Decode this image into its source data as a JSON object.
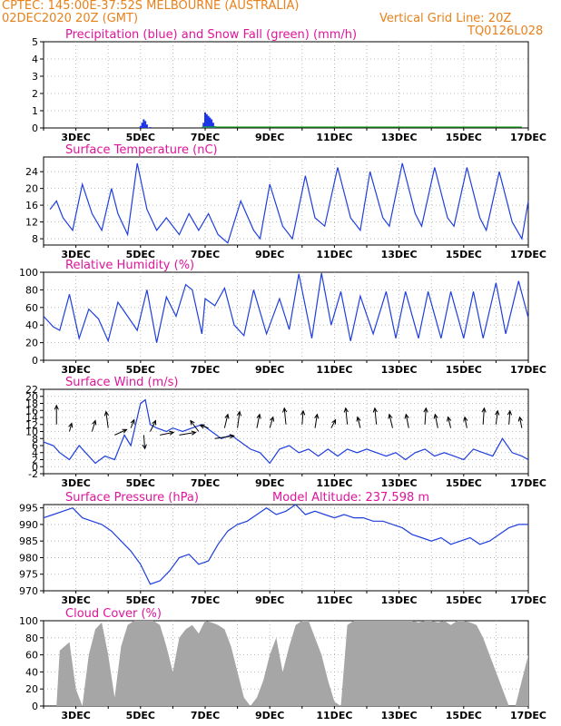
{
  "header": {
    "line1": "CPTEC:    145:00E-37:52S   MELBOURNE (AUSTRALIA)",
    "line2": "02DEC2020 20Z (GMT)",
    "grid_note": "Vertical Grid Line: 20Z",
    "code": "TQ0126L028"
  },
  "colors": {
    "header": "#e8811a",
    "title": "#e0149b",
    "line": "#1f3fdc",
    "precip": "#1a34e6",
    "snow": "#21a821",
    "cloud": "#a6a6a6",
    "arrow": "#000000"
  },
  "x_labels": [
    "3DEC",
    "5DEC",
    "7DEC",
    "9DEC",
    "11DEC",
    "13DEC",
    "15DEC",
    "17DEC"
  ],
  "chart_data": [
    {
      "type": "bar",
      "title": "Precipitation (blue) and Snow Fall (green) (mm/h)",
      "ylim": [
        0,
        5
      ],
      "yticks": [
        0,
        1,
        2,
        3,
        4,
        5
      ],
      "grid": true,
      "series": [
        {
          "name": "Precipitation",
          "values": [
            [
              5.0,
              0.1
            ],
            [
              5.05,
              0.3
            ],
            [
              5.1,
              0.5
            ],
            [
              5.15,
              0.4
            ],
            [
              5.2,
              0.2
            ],
            [
              5.3,
              0.05
            ],
            [
              6.95,
              0.3
            ],
            [
              7.0,
              0.9
            ],
            [
              7.05,
              0.8
            ],
            [
              7.1,
              0.7
            ],
            [
              7.15,
              0.6
            ],
            [
              7.2,
              0.5
            ],
            [
              7.25,
              0.3
            ],
            [
              7.3,
              0.1
            ]
          ]
        },
        {
          "name": "Snow Fall",
          "values": []
        }
      ]
    },
    {
      "type": "line",
      "title": "Surface Temperature (nC)",
      "ylim": [
        6.5,
        27.5
      ],
      "yticks": [
        8,
        12,
        16,
        20,
        24
      ],
      "grid": true,
      "x": [
        2.2,
        2.4,
        2.6,
        2.9,
        3.2,
        3.5,
        3.8,
        4.1,
        4.3,
        4.6,
        4.9,
        5.2,
        5.5,
        5.8,
        6.2,
        6.5,
        6.8,
        7.1,
        7.4,
        7.7,
        8.1,
        8.5,
        8.7,
        9.0,
        9.4,
        9.7,
        10.1,
        10.4,
        10.7,
        11.1,
        11.5,
        11.8,
        12.1,
        12.5,
        12.7,
        13.1,
        13.5,
        13.7,
        14.1,
        14.5,
        14.7,
        15.1,
        15.5,
        15.7,
        16.1,
        16.5,
        16.8,
        17.0
      ],
      "y": [
        15,
        17,
        13,
        10,
        21,
        14,
        10,
        20,
        14,
        9,
        26,
        15,
        10,
        13,
        9,
        14,
        10,
        14,
        9,
        7,
        17,
        10,
        8,
        21,
        11,
        8,
        23,
        13,
        11,
        25,
        13,
        10,
        24,
        13,
        11,
        26,
        14,
        11,
        25,
        13,
        11,
        25,
        13,
        10,
        24,
        12,
        8,
        17
      ]
    },
    {
      "type": "line",
      "title": "Relative Humidity (%)",
      "ylim": [
        0,
        100
      ],
      "yticks": [
        0,
        20,
        40,
        60,
        80,
        100
      ],
      "grid": true,
      "x": [
        2.0,
        2.3,
        2.5,
        2.8,
        3.1,
        3.4,
        3.7,
        4.0,
        4.3,
        4.6,
        4.9,
        5.2,
        5.5,
        5.8,
        6.1,
        6.4,
        6.6,
        6.9,
        7.0,
        7.3,
        7.6,
        7.9,
        8.2,
        8.5,
        8.9,
        9.3,
        9.6,
        9.9,
        10.3,
        10.6,
        10.9,
        11.2,
        11.5,
        11.8,
        12.2,
        12.6,
        12.9,
        13.2,
        13.6,
        13.9,
        14.3,
        14.6,
        15.0,
        15.3,
        15.6,
        16.0,
        16.3,
        16.7,
        17.0
      ],
      "y": [
        50,
        38,
        34,
        75,
        25,
        58,
        47,
        22,
        66,
        50,
        34,
        80,
        20,
        72,
        50,
        86,
        80,
        30,
        70,
        62,
        82,
        40,
        28,
        80,
        30,
        70,
        35,
        98,
        25,
        99,
        40,
        78,
        22,
        73,
        30,
        78,
        25,
        78,
        25,
        78,
        25,
        78,
        25,
        78,
        25,
        88,
        30,
        90,
        48
      ]
    },
    {
      "type": "line",
      "title": "Surface Wind (m/s)",
      "ylim": [
        -2,
        22
      ],
      "yticks": [
        -2,
        0,
        2,
        4,
        6,
        8,
        10,
        12,
        14,
        16,
        18,
        20,
        22
      ],
      "grid": true,
      "x": [
        2.0,
        2.3,
        2.5,
        2.8,
        3.1,
        3.3,
        3.6,
        3.9,
        4.2,
        4.5,
        4.7,
        5.0,
        5.15,
        5.3,
        5.5,
        5.8,
        6.0,
        6.3,
        6.6,
        6.9,
        7.2,
        7.5,
        7.8,
        8.1,
        8.4,
        8.7,
        9.0,
        9.3,
        9.6,
        9.9,
        10.2,
        10.5,
        10.8,
        11.1,
        11.4,
        11.7,
        12.0,
        12.3,
        12.6,
        12.9,
        13.2,
        13.5,
        13.8,
        14.1,
        14.4,
        14.7,
        15.0,
        15.3,
        15.6,
        15.9,
        16.2,
        16.5,
        16.8,
        17.0
      ],
      "y": [
        7,
        6,
        4,
        2,
        6,
        4,
        1,
        3,
        2,
        9,
        6,
        18,
        19,
        12,
        11,
        10,
        11,
        10,
        11,
        12,
        10,
        8,
        9,
        7,
        5,
        4,
        1,
        5,
        6,
        4,
        5,
        3,
        5,
        3,
        5,
        4,
        5,
        4,
        3,
        4,
        2,
        4,
        5,
        3,
        4,
        3,
        2,
        5,
        4,
        3,
        8,
        4,
        3,
        2
      ],
      "arrows": [
        [
          2.4,
          12,
          0.0,
          -3.5
        ],
        [
          2.8,
          10,
          0.4,
          -1.5
        ],
        [
          3.5,
          10,
          0.6,
          -2.0
        ],
        [
          4.0,
          11,
          -0.4,
          -3.0
        ],
        [
          4.2,
          9,
          2.2,
          -1.0
        ],
        [
          4.7,
          11,
          0.6,
          -1.5
        ],
        [
          5.1,
          9,
          0.2,
          2.5
        ],
        [
          5.3,
          10,
          1.0,
          -2.0
        ],
        [
          5.6,
          9,
          2.5,
          -0.5
        ],
        [
          6.2,
          9,
          3.0,
          -0.5
        ],
        [
          6.8,
          10,
          -1.5,
          -2.0
        ],
        [
          7.1,
          11,
          -1.5,
          -0.5
        ],
        [
          7.3,
          8,
          3.5,
          -0.5
        ],
        [
          7.6,
          11,
          0.6,
          -2.5
        ],
        [
          8.0,
          11,
          0.4,
          -3.0
        ],
        [
          8.6,
          11,
          0.5,
          -2.5
        ],
        [
          9.0,
          11,
          0.6,
          -2.0
        ],
        [
          9.5,
          12,
          -0.3,
          -3.0
        ],
        [
          10.0,
          12,
          0.2,
          -2.5
        ],
        [
          10.4,
          11,
          0.4,
          -2.5
        ],
        [
          10.9,
          11,
          0.8,
          -1.5
        ],
        [
          11.4,
          12,
          -0.3,
          -3.0
        ],
        [
          11.8,
          11,
          -0.5,
          -2.0
        ],
        [
          12.3,
          12,
          -0.3,
          -3.0
        ],
        [
          12.8,
          11,
          -0.6,
          -2.5
        ],
        [
          13.3,
          11,
          -0.5,
          -2.5
        ],
        [
          13.8,
          12,
          0.2,
          -3.0
        ],
        [
          14.2,
          11,
          -0.5,
          -2.5
        ],
        [
          14.6,
          11,
          -0.5,
          -2.0
        ],
        [
          15.1,
          11,
          -0.4,
          -2.0
        ],
        [
          15.6,
          12,
          0.2,
          -3.0
        ],
        [
          16.0,
          12,
          0.3,
          -2.5
        ],
        [
          16.4,
          12,
          0.2,
          -2.5
        ],
        [
          16.8,
          11,
          -0.4,
          -2.0
        ]
      ]
    },
    {
      "type": "line",
      "title": "Surface Pressure (hPa)",
      "annotation": "Model Altitude: 237.598 m",
      "ylim": [
        970,
        996
      ],
      "yticks": [
        970,
        975,
        980,
        985,
        990,
        995
      ],
      "grid": true,
      "x": [
        2.0,
        2.3,
        2.6,
        2.9,
        3.2,
        3.5,
        3.8,
        4.1,
        4.4,
        4.7,
        5.0,
        5.3,
        5.6,
        5.9,
        6.2,
        6.5,
        6.8,
        7.1,
        7.4,
        7.7,
        8.0,
        8.3,
        8.6,
        8.9,
        9.2,
        9.5,
        9.8,
        10.1,
        10.4,
        10.7,
        11.0,
        11.3,
        11.6,
        11.9,
        12.2,
        12.5,
        12.8,
        13.1,
        13.4,
        13.7,
        14.0,
        14.3,
        14.6,
        14.9,
        15.2,
        15.5,
        15.8,
        16.1,
        16.4,
        16.7,
        17.0
      ],
      "y": [
        992,
        993,
        994,
        995,
        992,
        991,
        990,
        988,
        985,
        982,
        978,
        972,
        973,
        976,
        980,
        981,
        978,
        979,
        984,
        988,
        990,
        991,
        993,
        995,
        993,
        994,
        996,
        993,
        994,
        993,
        992,
        993,
        992,
        992,
        991,
        991,
        990,
        989,
        987,
        986,
        985,
        986,
        984,
        985,
        986,
        984,
        985,
        987,
        989,
        990,
        990
      ]
    },
    {
      "type": "area",
      "title": "Cloud Cover (%)",
      "ylim": [
        0,
        100
      ],
      "yticks": [
        0,
        20,
        40,
        60,
        80,
        100
      ],
      "grid": true,
      "x": [
        2.0,
        2.4,
        2.5,
        2.8,
        3.0,
        3.2,
        3.4,
        3.6,
        3.8,
        4.0,
        4.2,
        4.4,
        4.6,
        4.8,
        5.0,
        5.2,
        5.4,
        5.6,
        5.8,
        6.0,
        6.2,
        6.4,
        6.6,
        6.8,
        7.0,
        7.2,
        7.4,
        7.6,
        7.8,
        8.0,
        8.2,
        8.4,
        8.6,
        8.8,
        9.0,
        9.2,
        9.4,
        9.6,
        9.8,
        10.0,
        10.2,
        10.4,
        10.6,
        10.8,
        11.0,
        11.2,
        11.4,
        11.6,
        11.8,
        12.0,
        12.2,
        12.4,
        12.6,
        12.8,
        13.0,
        13.2,
        13.4,
        13.6,
        13.8,
        14.0,
        14.2,
        14.4,
        14.6,
        14.8,
        15.0,
        15.2,
        15.4,
        15.6,
        15.8,
        16.0,
        16.2,
        16.4,
        16.6,
        16.8,
        17.0
      ],
      "y": [
        0,
        0,
        65,
        75,
        20,
        0,
        60,
        90,
        98,
        60,
        10,
        70,
        95,
        100,
        100,
        100,
        100,
        95,
        70,
        40,
        80,
        90,
        95,
        85,
        100,
        98,
        95,
        90,
        70,
        40,
        10,
        0,
        10,
        30,
        60,
        80,
        40,
        70,
        95,
        100,
        100,
        80,
        60,
        30,
        5,
        0,
        95,
        100,
        100,
        100,
        100,
        100,
        100,
        100,
        100,
        100,
        100,
        98,
        100,
        100,
        98,
        100,
        95,
        100,
        100,
        98,
        95,
        80,
        60,
        40,
        20,
        0,
        0,
        30,
        60
      ]
    }
  ]
}
